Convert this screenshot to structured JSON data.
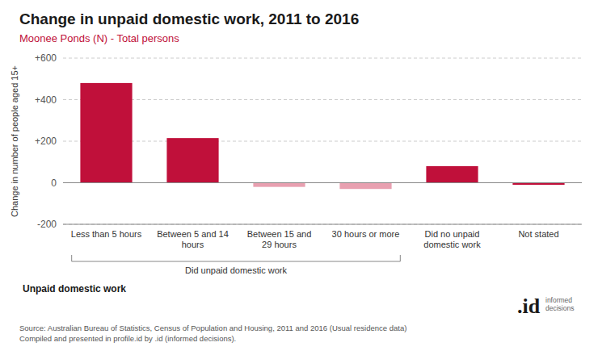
{
  "chart_data": {
    "type": "bar",
    "title": "Change in unpaid domestic work, 2011 to 2016",
    "subtitle": "Moonee Ponds (N) - Total persons",
    "categories": [
      "Less than 5 hours",
      "Between 5 and 14\nhours",
      "Between 15 and\n29 hours",
      "30 hours or more",
      "Did no unpaid\ndomestic work",
      "Not stated"
    ],
    "values": [
      480,
      215,
      -20,
      -30,
      80,
      -10
    ],
    "colors": [
      "#c0103a",
      "#c0103a",
      "#e8a0b0",
      "#e8a0b0",
      "#c0103a",
      "#c0103a"
    ],
    "ylabel": "Change in number of people aged 15+",
    "xlabel": "Unpaid domestic work",
    "ylim": [
      -200,
      600
    ],
    "yticks": [
      -200,
      0,
      {
        "value": 200,
        "label": "+200"
      },
      {
        "value": 400,
        "label": "+400"
      },
      {
        "value": 600,
        "label": "+600"
      }
    ],
    "grid": true,
    "annotations": [
      "Did unpaid domestic work"
    ],
    "source": "Source: Australian Bureau of Statistics, Census of Population and Housing, 2011 and 2016 (Usual residence data)\nCompiled and presented in profile.id by .id (informed decisions).",
    "logo": ".id",
    "logo_text": "informed\ndecisions"
  }
}
